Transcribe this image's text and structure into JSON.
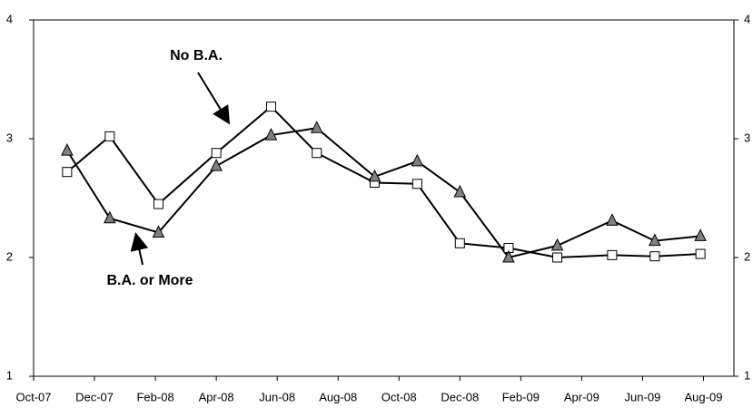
{
  "chart_data": {
    "type": "line",
    "annotations": [
      "No B.A.",
      "B.A. or More"
    ],
    "x": [
      1.1,
      2.5,
      4.1,
      6.0,
      7.8,
      9.3,
      11.2,
      12.6,
      14.0,
      15.6,
      17.2,
      19.0,
      20.4,
      21.9
    ],
    "series": [
      {
        "name": "No B.A.",
        "marker": "square",
        "color": "#000000",
        "values": [
          2.72,
          3.02,
          2.45,
          2.88,
          3.27,
          2.88,
          2.63,
          2.62,
          2.12,
          2.08,
          2.0,
          2.02,
          2.01,
          2.03
        ]
      },
      {
        "name": "B.A. or More",
        "marker": "triangle",
        "color": "#808080",
        "values": [
          2.9,
          2.33,
          2.21,
          2.77,
          3.03,
          3.09,
          2.68,
          2.81,
          2.55,
          2.0,
          2.1,
          2.31,
          2.14,
          2.18
        ]
      }
    ],
    "xlim": [
      0,
      23
    ],
    "xticks": [
      {
        "value": 0,
        "label": "Oct-07"
      },
      {
        "value": 2,
        "label": "Dec-07"
      },
      {
        "value": 4,
        "label": "Feb-08"
      },
      {
        "value": 6,
        "label": "Apr-08"
      },
      {
        "value": 8,
        "label": "Jun-08"
      },
      {
        "value": 10,
        "label": "Aug-08"
      },
      {
        "value": 12,
        "label": "Oct-08"
      },
      {
        "value": 14,
        "label": "Dec-08"
      },
      {
        "value": 16,
        "label": "Feb-09"
      },
      {
        "value": 18,
        "label": "Apr-09"
      },
      {
        "value": 20,
        "label": "Jun-09"
      },
      {
        "value": 22,
        "label": "Aug-09"
      }
    ],
    "ylim": [
      1,
      4
    ],
    "yticks": [
      1,
      2,
      3,
      4
    ]
  }
}
